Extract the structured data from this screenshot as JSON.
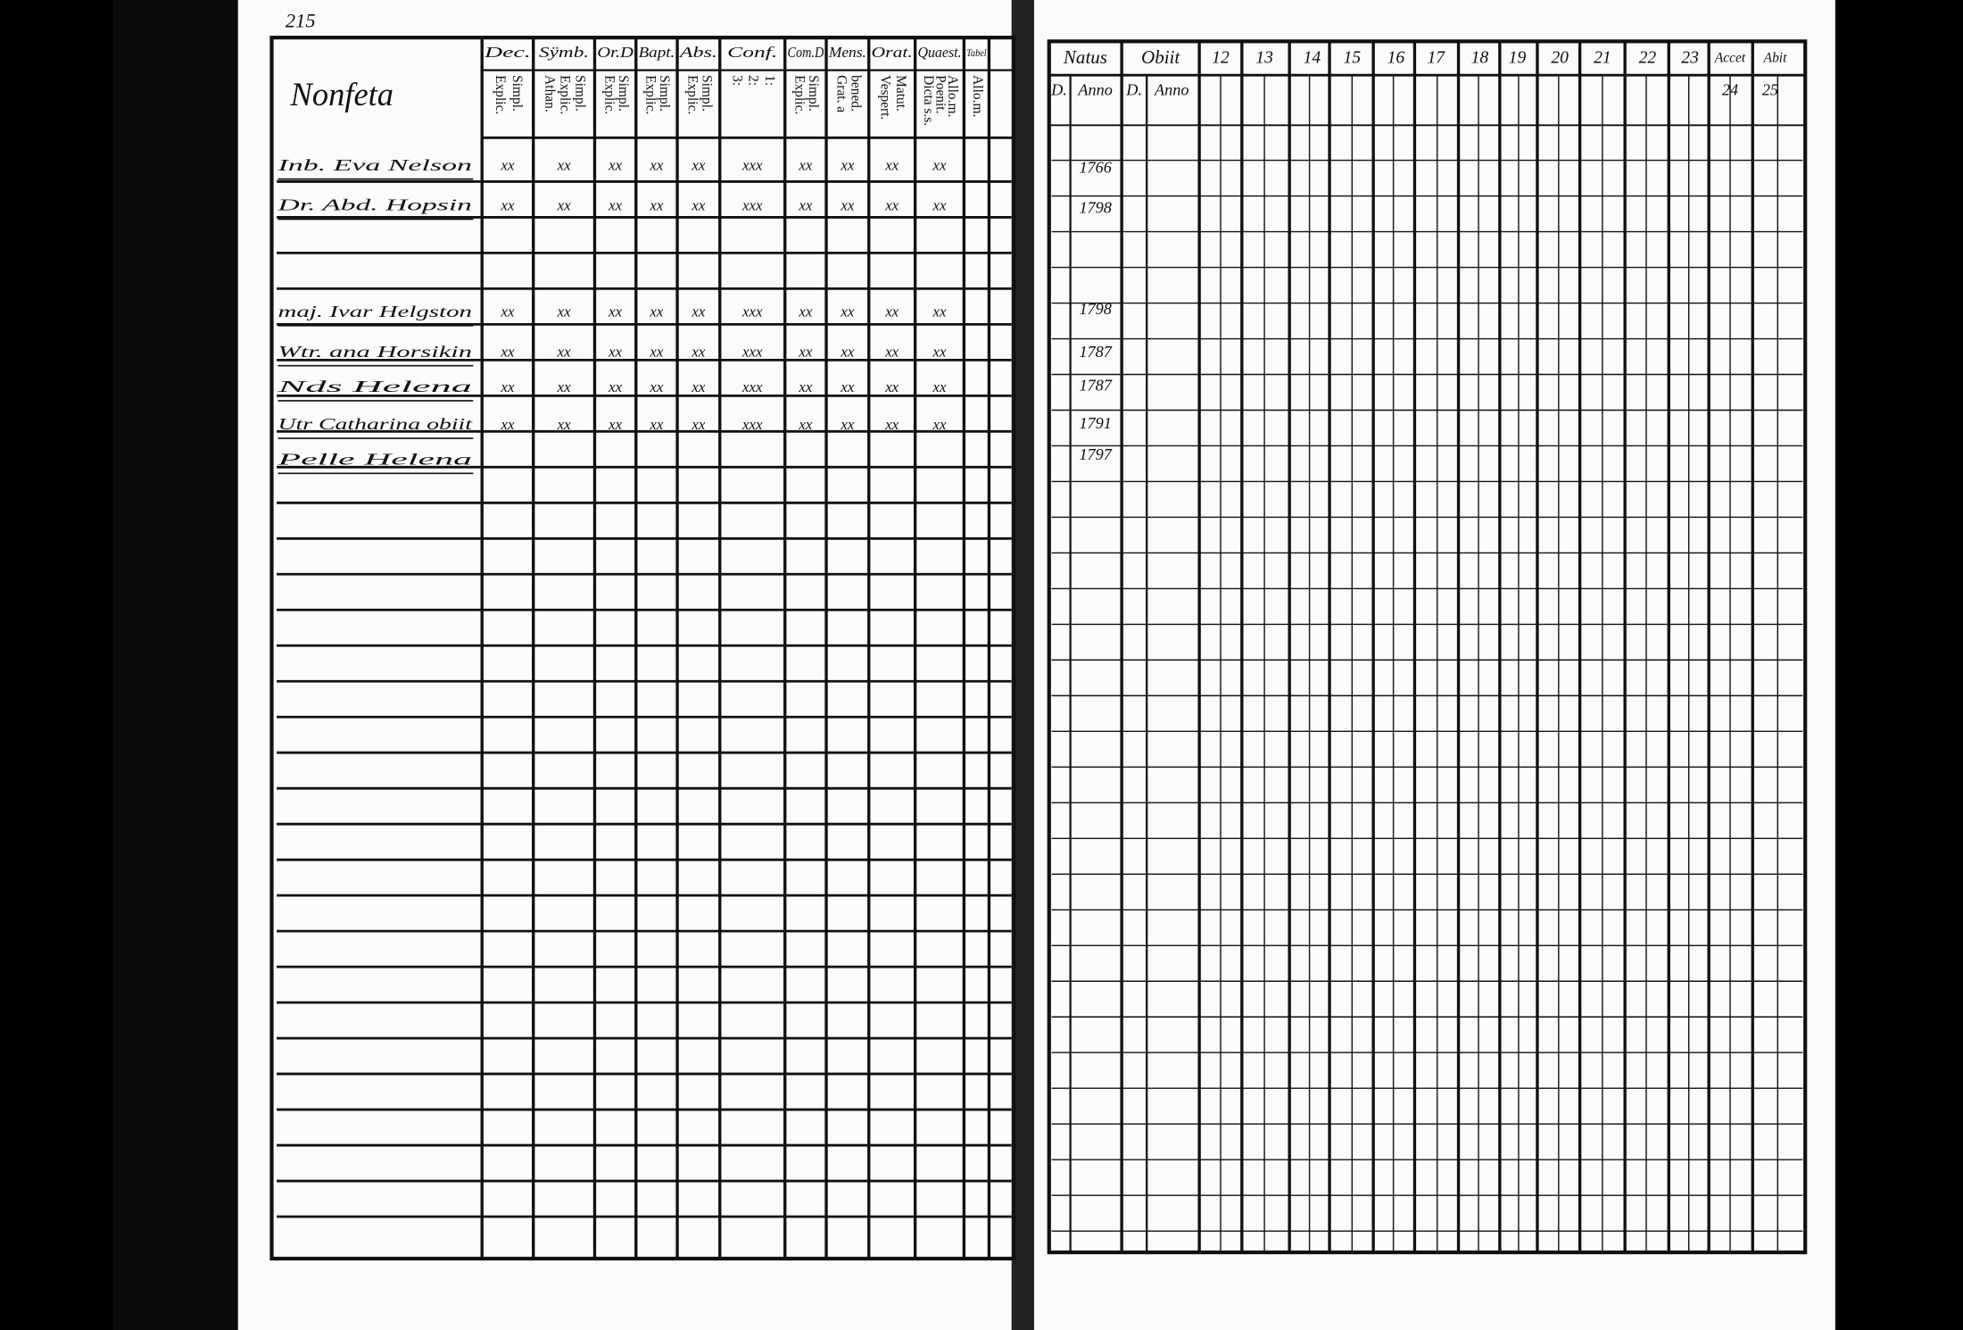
{
  "left_page": {
    "page_number": "215",
    "heading": "Nonfeta",
    "columns": [
      {
        "title": "Dec.",
        "sub": [
          "Explic.",
          "Simpl."
        ]
      },
      {
        "title": "Sÿmb.",
        "sub": [
          "Athan.",
          "Explic.",
          "Simpl."
        ]
      },
      {
        "title": "Or.D",
        "sub": [
          "Explic.",
          "Simpl."
        ]
      },
      {
        "title": "Bapt.",
        "sub": [
          "Explic.",
          "Simpl."
        ]
      },
      {
        "title": "Abs.",
        "sub": [
          "Explic.",
          "Simpl."
        ]
      },
      {
        "title": "Conf.",
        "sub": [
          "3:",
          "2:",
          "1:"
        ]
      },
      {
        "title": "Com.D",
        "sub": [
          "Explic.",
          "Simpl."
        ]
      },
      {
        "title": "Mens.",
        "sub": [
          "Grat. a",
          "bened."
        ]
      },
      {
        "title": "Orat.",
        "sub": [
          "Vespert.",
          "Matut."
        ]
      },
      {
        "title": "Quaest.",
        "sub": [
          "Dicta s.s.",
          "Poenit.",
          "Allo.m."
        ]
      },
      {
        "title": "Tabel",
        "sub": [
          "Allo.m."
        ]
      }
    ],
    "rows": [
      {
        "name": "Inb. Eva Nelson",
        "cells": [
          "xx",
          "xx",
          "xx",
          "xx",
          "xx",
          "xxx",
          "xx",
          "xx",
          "xx",
          "xx"
        ]
      },
      {
        "name": "Dr. Abd. Hopsin",
        "cells": [
          "xx",
          "xx",
          "xx",
          "xx",
          "xx",
          "xxx",
          "xx",
          "xx",
          "xx",
          "xx"
        ]
      },
      {
        "name": "maj. Ivar Helgston",
        "cells": [
          "xx",
          "xx",
          "xx",
          "xx",
          "xx",
          "xxx",
          "xx",
          "xx",
          "xx",
          "xx"
        ]
      },
      {
        "name": "Wtr. ana Horsikin",
        "cells": [
          "xx",
          "xx",
          "xx",
          "xx",
          "xx",
          "xxx",
          "xx",
          "xx",
          "xx",
          "xx"
        ]
      },
      {
        "name": "Nds Helena",
        "cells": [
          "xx",
          "xx",
          "xx",
          "xx",
          "xx",
          "xxx",
          "xx",
          "xx",
          "xx",
          "xx"
        ]
      },
      {
        "name": "Utr Catharina obiit",
        "cells": [
          "xx",
          "xx",
          "xx",
          "xx",
          "xx",
          "xxx",
          "xx",
          "xx",
          "xx",
          "xx"
        ]
      },
      {
        "name": "Pelle Helena",
        "cells": []
      }
    ]
  },
  "right_page": {
    "headers": [
      "Natus",
      "Obiit",
      "12",
      "13",
      "14",
      "15",
      "16",
      "17",
      "18",
      "19",
      "20",
      "21",
      "22",
      "23",
      "Accet",
      "Abit"
    ],
    "subheaders": [
      "D.",
      "Anno",
      "D.",
      "Anno",
      "24",
      "25"
    ],
    "years": [
      "1766",
      "1798",
      "1798",
      "1787",
      "1787",
      "1791",
      "1797"
    ]
  }
}
